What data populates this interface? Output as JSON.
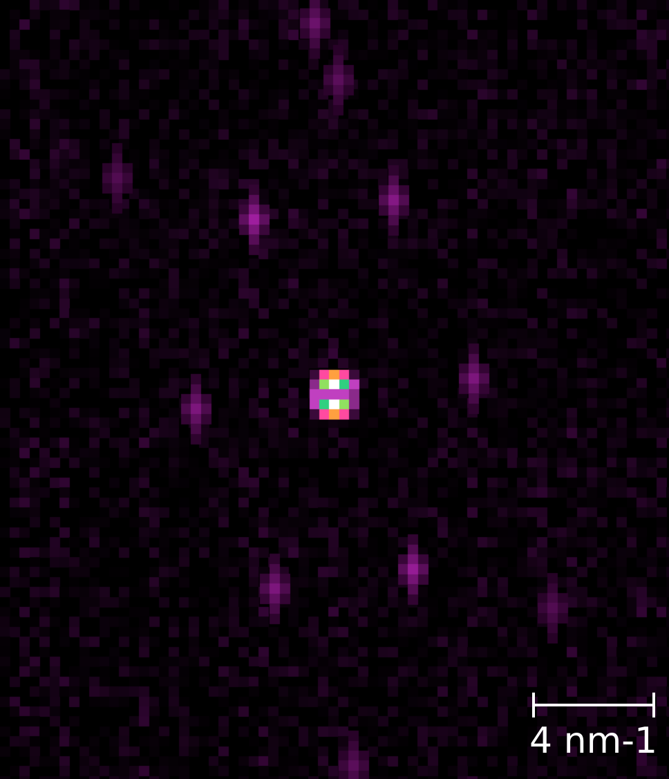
{
  "image": {
    "description_colormap": [
      "#000000",
      "#3a0a3a",
      "#8a2a8a",
      "#c040c0",
      "#ff4aa0",
      "#ffa040",
      "#90e060",
      "#30d080",
      "#ffffff"
    ],
    "background_color": "#000000"
  },
  "scale_bar": {
    "label": "4 nm-1",
    "color": "#ffffff"
  }
}
